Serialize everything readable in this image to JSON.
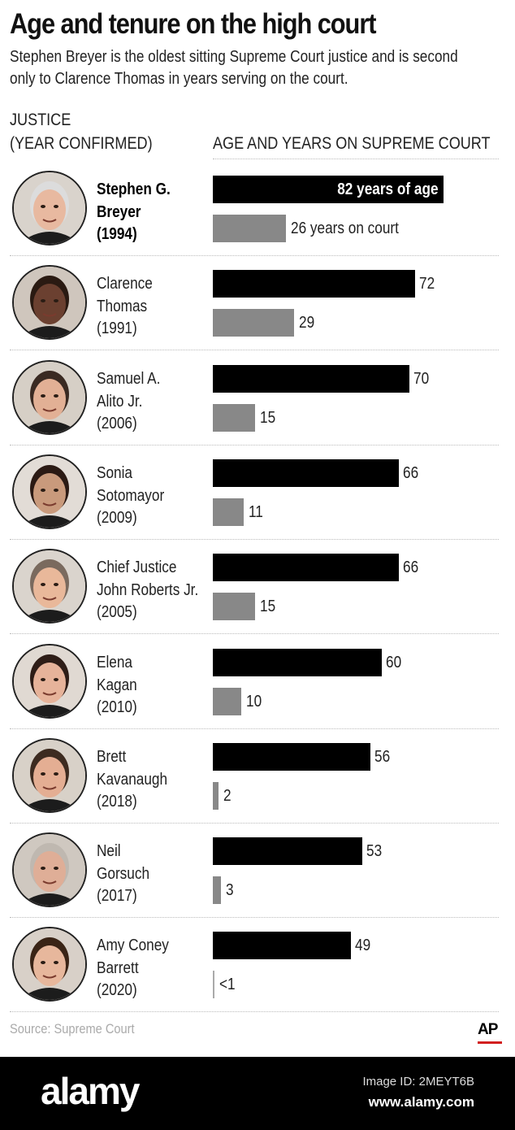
{
  "title": "Age and tenure on the high court",
  "subtitle": "Stephen Breyer is the oldest sitting Supreme Court justice and is second only to Clarence Thomas in years serving on the court.",
  "columns": {
    "justice_line1": "JUSTICE",
    "justice_line2": "(YEAR CONFIRMED)",
    "chart": "AGE AND YEARS ON SUPREME COURT"
  },
  "chart_data": {
    "type": "bar",
    "title": "Age and tenure on the high court",
    "xlabel": "AGE AND YEARS ON SUPREME COURT",
    "xlim": [
      0,
      82
    ],
    "grid": false,
    "series_colors": {
      "age": "#000000",
      "tenure": "#888888"
    },
    "rows": [
      {
        "name": [
          "Stephen G.",
          "Breyer",
          "(1994)"
        ],
        "highlight": true,
        "age": 82,
        "tenure": 26,
        "age_label": "82 years of age",
        "tenure_label": "26 years on court",
        "avatar": "breyer-portrait"
      },
      {
        "name": [
          "Clarence",
          "Thomas",
          "(1991)"
        ],
        "highlight": false,
        "age": 72,
        "tenure": 29,
        "age_label": "72",
        "tenure_label": "29",
        "avatar": "thomas-portrait"
      },
      {
        "name": [
          "Samuel A.",
          " Alito Jr.",
          "(2006)"
        ],
        "highlight": false,
        "age": 70,
        "tenure": 15,
        "age_label": "70",
        "tenure_label": "15",
        "avatar": "alito-portrait"
      },
      {
        "name": [
          "Sonia",
          "Sotomayor",
          "(2009)"
        ],
        "highlight": false,
        "age": 66,
        "tenure": 11,
        "age_label": "66",
        "tenure_label": "11",
        "avatar": "sotomayor-portrait"
      },
      {
        "name": [
          "Chief Justice",
          "John Roberts Jr.",
          "(2005)"
        ],
        "highlight": false,
        "age": 66,
        "tenure": 15,
        "age_label": "66",
        "tenure_label": "15",
        "avatar": "roberts-portrait"
      },
      {
        "name": [
          "Elena",
          "Kagan",
          "(2010)"
        ],
        "highlight": false,
        "age": 60,
        "tenure": 10,
        "age_label": "60",
        "tenure_label": "10",
        "avatar": "kagan-portrait"
      },
      {
        "name": [
          "Brett",
          "Kavanaugh",
          "(2018)"
        ],
        "highlight": false,
        "age": 56,
        "tenure": 2,
        "age_label": "56",
        "tenure_label": "2",
        "avatar": "kavanaugh-portrait"
      },
      {
        "name": [
          "Neil",
          "Gorsuch",
          "(2017)"
        ],
        "highlight": false,
        "age": 53,
        "tenure": 3,
        "age_label": "53",
        "tenure_label": "3",
        "avatar": "gorsuch-portrait"
      },
      {
        "name": [
          "Amy Coney",
          "Barrett",
          "(2020)"
        ],
        "highlight": false,
        "age": 49,
        "tenure": 0.5,
        "age_label": "49",
        "tenure_label": "<1",
        "avatar": "barrett-portrait"
      }
    ]
  },
  "source": "Source: Supreme Court",
  "logo": "AP",
  "logo_accent": "#d21f1f",
  "footer": {
    "brand": "alamy",
    "image_id": "Image ID: 2MEYT6B",
    "site": "www.alamy.com"
  }
}
